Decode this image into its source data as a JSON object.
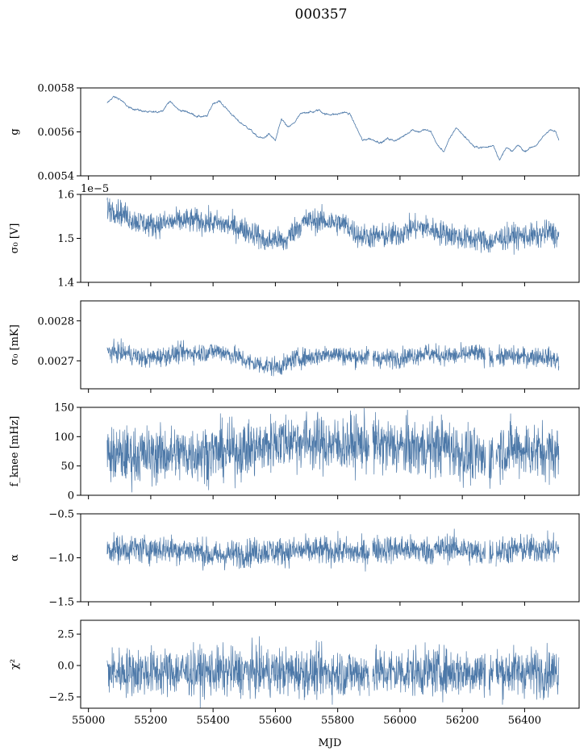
{
  "chart_data": [
    {
      "type": "line",
      "title": "000357",
      "ylabel": "g",
      "ylim": [
        0.0054,
        0.0058
      ],
      "yticks": [
        "0.0054",
        "0.0056",
        "0.0058"
      ],
      "ytick_values": [
        0.0054,
        0.0056,
        0.0058
      ],
      "xlim": [
        54975,
        56575
      ],
      "color": "#4c78a8",
      "series": [
        {
          "x": [
            55060,
            55080,
            55100,
            55130,
            55160,
            55190,
            55220,
            55240,
            55260,
            55290,
            55320,
            55350,
            55380,
            55400,
            55420,
            55440,
            55460,
            55480,
            55500,
            55520,
            55540,
            55560,
            55580,
            55600,
            55620,
            55640,
            55660,
            55680,
            55700,
            55720,
            55740,
            55760,
            55780,
            55800,
            55820,
            55840,
            55860,
            55880,
            55900,
            55920,
            55940,
            55960,
            55980,
            56000,
            56020,
            56040,
            56060,
            56080,
            56100,
            56120,
            56140,
            56160,
            56180,
            56200,
            56220,
            56240,
            56260,
            56280,
            56300,
            56320,
            56340,
            56360,
            56380,
            56400,
            56420,
            56440,
            56460,
            56480,
            56500,
            56510
          ],
          "y": [
            0.00573,
            0.00576,
            0.00575,
            0.00571,
            0.0057,
            0.00569,
            0.00569,
            0.0057,
            0.00574,
            0.0057,
            0.00569,
            0.00567,
            0.00567,
            0.00573,
            0.00574,
            0.00571,
            0.00568,
            0.00565,
            0.00563,
            0.00561,
            0.00558,
            0.00557,
            0.00559,
            0.00556,
            0.00566,
            0.00562,
            0.00564,
            0.00568,
            0.00569,
            0.00569,
            0.0057,
            0.00568,
            0.00568,
            0.00568,
            0.00569,
            0.00568,
            0.00562,
            0.00556,
            0.00557,
            0.00556,
            0.00555,
            0.00557,
            0.00556,
            0.00557,
            0.00559,
            0.00561,
            0.0056,
            0.00561,
            0.0056,
            0.00554,
            0.00551,
            0.00557,
            0.00562,
            0.00559,
            0.00556,
            0.00553,
            0.00553,
            0.00553,
            0.00554,
            0.00547,
            0.00553,
            0.00551,
            0.00554,
            0.00551,
            0.00553,
            0.00554,
            0.00558,
            0.00561,
            0.0056,
            0.00556
          ],
          "noise": 2.5e-06
        }
      ]
    },
    {
      "type": "line",
      "ylabel": "σ₀ [V]",
      "ylim": [
        1.4,
        1.6
      ],
      "yticks": [
        "1.4",
        "1.5",
        "1.6"
      ],
      "ytick_values": [
        1.4,
        1.5,
        1.6
      ],
      "offset_text": "1e−5",
      "xlim": [
        54975,
        56575
      ],
      "color": "#4c78a8",
      "series": [
        {
          "x": [
            55060,
            55100,
            55150,
            55200,
            55250,
            55300,
            55350,
            55400,
            55450,
            55500,
            55540,
            55570,
            55600,
            55630,
            55660,
            55700,
            55750,
            55800,
            55830,
            55860,
            55880,
            55920,
            55960,
            56000,
            56040,
            56080,
            56120,
            56160,
            56200,
            56240,
            56270,
            56290,
            56320,
            56360,
            56400,
            56440,
            56480,
            56510
          ],
          "y": [
            1.57,
            1.56,
            1.54,
            1.53,
            1.535,
            1.54,
            1.54,
            1.535,
            1.53,
            1.52,
            1.51,
            1.49,
            1.5,
            1.49,
            1.52,
            1.54,
            1.54,
            1.535,
            1.53,
            1.51,
            1.505,
            1.505,
            1.505,
            1.51,
            1.525,
            1.525,
            1.515,
            1.51,
            1.5,
            1.5,
            1.495,
            1.49,
            1.5,
            1.505,
            1.505,
            1.505,
            1.515,
            1.505
          ],
          "noise": 0.014
        }
      ]
    },
    {
      "type": "line",
      "ylabel": "σ₀ [mK]",
      "ylim": [
        0.00263,
        0.00285
      ],
      "yticks": [
        "0.0027",
        "0.0028"
      ],
      "ytick_values": [
        0.0027,
        0.0028
      ],
      "xlim": [
        54975,
        56575
      ],
      "color": "#4c78a8",
      "series": [
        {
          "x": [
            55060,
            55120,
            55180,
            55240,
            55300,
            55360,
            55420,
            55480,
            55520,
            55560,
            55600,
            55630,
            55660,
            55720,
            55780,
            55840,
            55900,
            55960,
            56020,
            56080,
            56120,
            56180,
            56240,
            56280,
            56300,
            56340,
            56400,
            56460,
            56510
          ],
          "y": [
            0.002722,
            0.00272,
            0.002705,
            0.002712,
            0.00272,
            0.00272,
            0.002725,
            0.00271,
            0.002695,
            0.00269,
            0.002685,
            0.00269,
            0.002705,
            0.00271,
            0.00272,
            0.00271,
            0.00271,
            0.002705,
            0.00271,
            0.00272,
            0.002715,
            0.002712,
            0.00272,
            0.00271,
            0.00271,
            0.002712,
            0.00271,
            0.002712,
            0.0027
          ],
          "noise": 1.2e-05
        }
      ]
    },
    {
      "type": "line",
      "ylabel": "f_knee [mHz]",
      "ylim": [
        0,
        150
      ],
      "yticks": [
        "0",
        "50",
        "100",
        "150"
      ],
      "ytick_values": [
        0,
        50,
        100,
        150
      ],
      "xlim": [
        54975,
        56575
      ],
      "color": "#4c78a8",
      "series": [
        {
          "x": [
            55060,
            55150,
            55250,
            55350,
            55450,
            55500,
            55560,
            55600,
            55650,
            55700,
            55750,
            55800,
            55850,
            55900,
            55950,
            56000,
            56050,
            56100,
            56150,
            56200,
            56250,
            56280,
            56320,
            56380,
            56440,
            56510
          ],
          "y": [
            68,
            68,
            70,
            72,
            75,
            78,
            82,
            92,
            95,
            92,
            88,
            85,
            88,
            88,
            85,
            82,
            80,
            82,
            85,
            70,
            65,
            60,
            78,
            80,
            75,
            72
          ],
          "noise": 24
        }
      ]
    },
    {
      "type": "line",
      "ylabel": "α",
      "ylim": [
        -1.5,
        -0.5
      ],
      "yticks": [
        "−1.5",
        "−1.0",
        "−0.5"
      ],
      "ytick_values": [
        -1.5,
        -1.0,
        -0.5
      ],
      "xlim": [
        54975,
        56575
      ],
      "color": "#4c78a8",
      "series": [
        {
          "x": [
            55060,
            55150,
            55250,
            55350,
            55400,
            55450,
            55500,
            55560,
            55600,
            55700,
            55800,
            55880,
            55920,
            56000,
            56100,
            56160,
            56200,
            56260,
            56320,
            56400,
            56510
          ],
          "y": [
            -0.9,
            -0.9,
            -0.9,
            -0.92,
            -0.98,
            -0.96,
            -0.95,
            -0.92,
            -0.93,
            -0.92,
            -0.92,
            -0.95,
            -0.9,
            -0.9,
            -0.92,
            -0.88,
            -0.9,
            -0.95,
            -0.92,
            -0.9,
            -0.9
          ],
          "noise": 0.08
        }
      ]
    },
    {
      "type": "line",
      "ylabel": "χ²",
      "xlabel": "MJD",
      "ylim": [
        -3.4,
        3.6
      ],
      "yticks": [
        "−2.5",
        "0.0",
        "2.5"
      ],
      "ytick_values": [
        -2.5,
        0.0,
        2.5
      ],
      "xticks": [
        "55000",
        "55200",
        "55400",
        "55600",
        "55800",
        "56000",
        "56200",
        "56400"
      ],
      "xtick_values": [
        55000,
        55200,
        55400,
        55600,
        55800,
        56000,
        56200,
        56400
      ],
      "xlim": [
        54975,
        56575
      ],
      "color": "#4c78a8",
      "series": [
        {
          "x": [
            55060,
            55200,
            55400,
            55600,
            55800,
            56000,
            56200,
            56400,
            56510
          ],
          "y": [
            -0.5,
            -0.5,
            -0.5,
            -0.5,
            -0.6,
            -0.5,
            -0.5,
            -0.5,
            -0.5
          ],
          "noise": 0.95
        }
      ]
    }
  ]
}
